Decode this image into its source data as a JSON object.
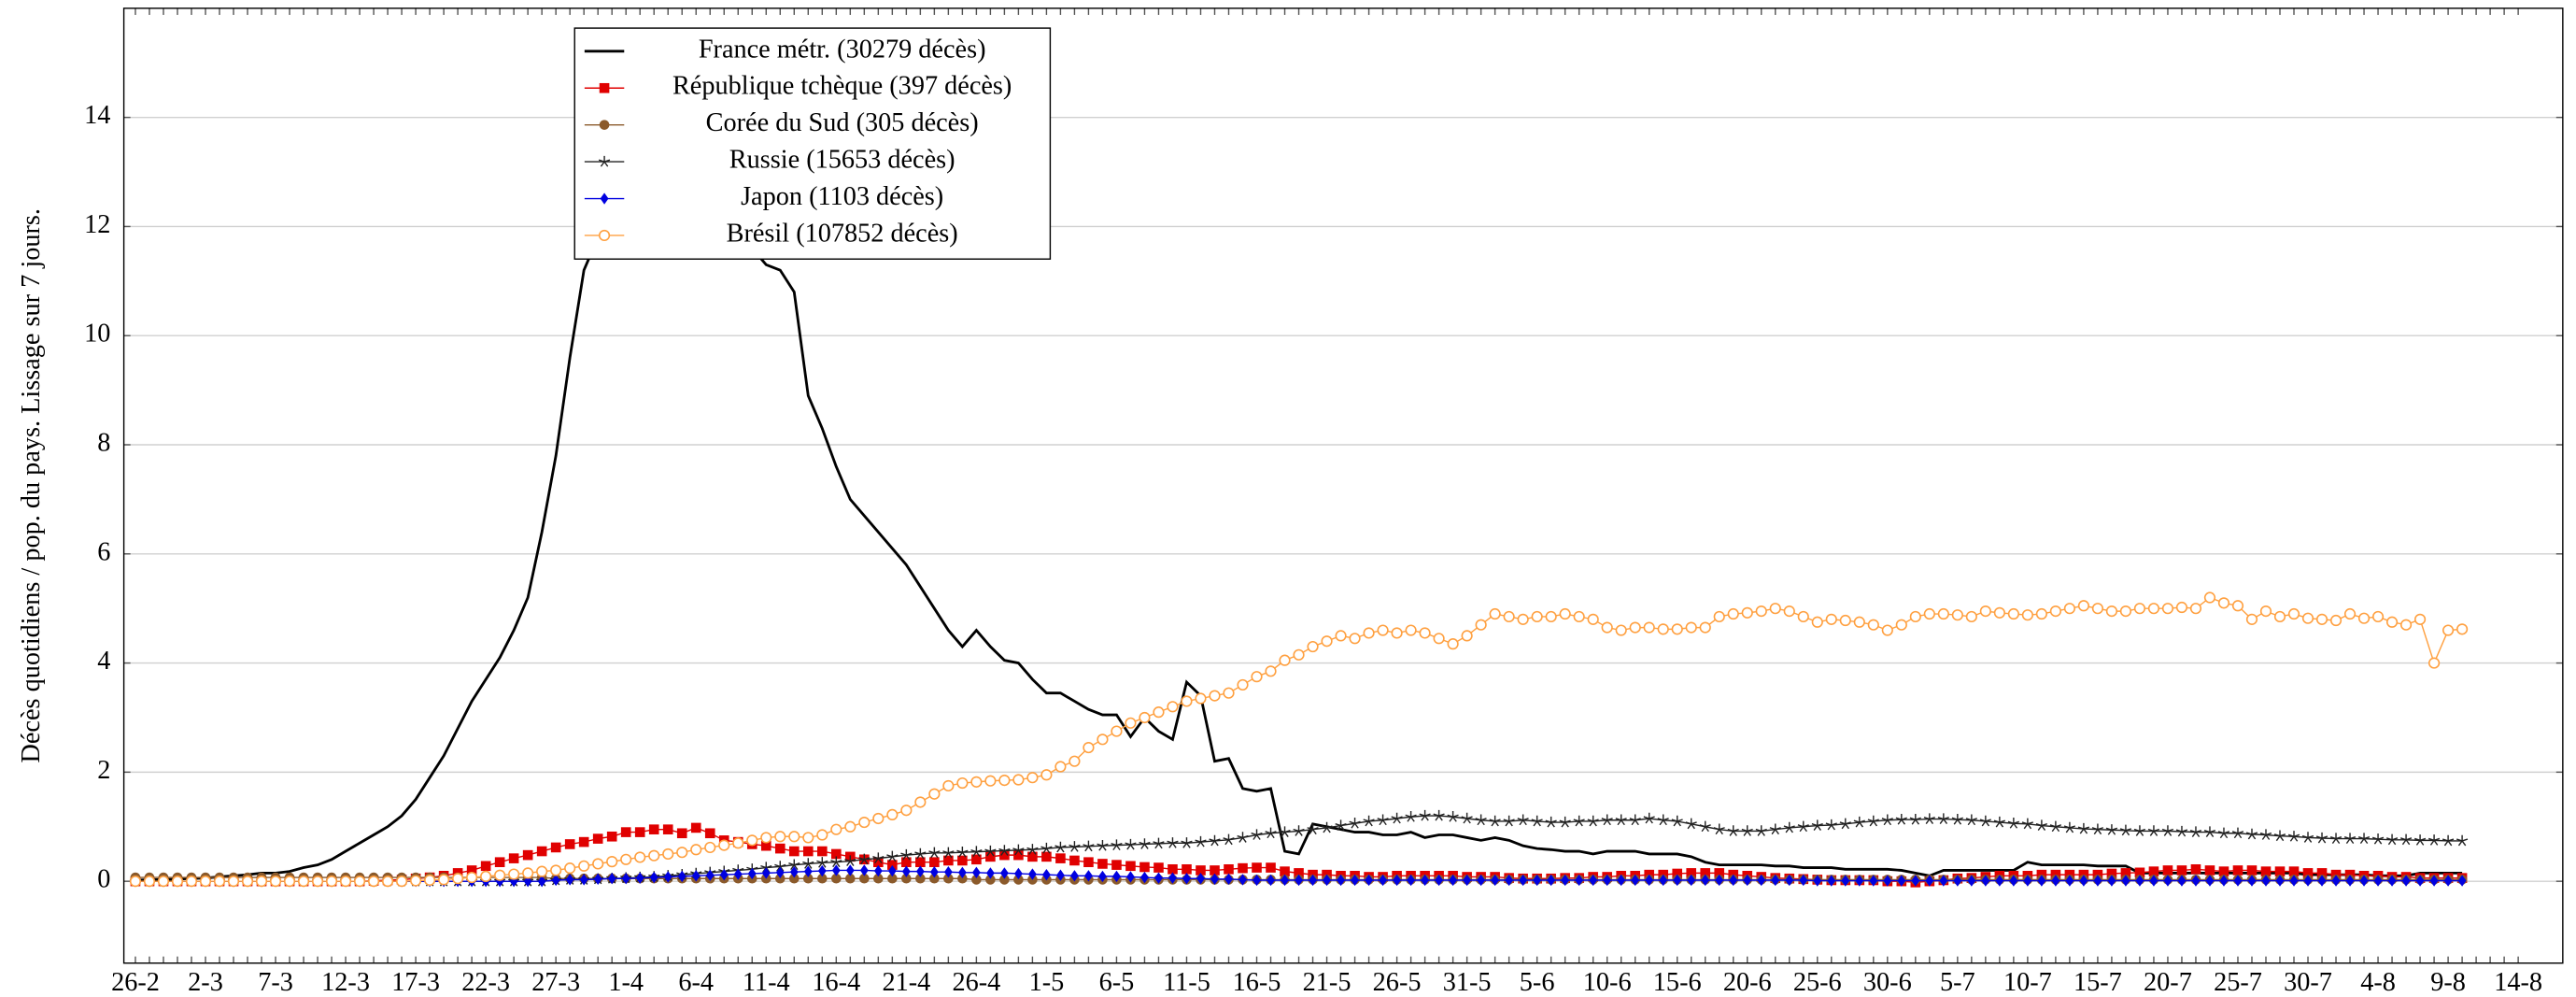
{
  "chart_data": {
    "type": "line",
    "y_label": "Décès quotidiens / pop. du pays. Lissage sur 7 jours.",
    "categories": [
      "26-2",
      null,
      null,
      null,
      null,
      "2-3",
      null,
      null,
      null,
      null,
      "7-3",
      null,
      null,
      null,
      null,
      "12-3",
      null,
      null,
      null,
      null,
      "17-3",
      null,
      null,
      null,
      null,
      "22-3",
      null,
      null,
      null,
      null,
      "27-3",
      null,
      null,
      null,
      null,
      "1-4",
      null,
      null,
      null,
      null,
      "6-4",
      null,
      null,
      null,
      null,
      "11-4",
      null,
      null,
      null,
      null,
      "16-4",
      null,
      null,
      null,
      null,
      "21-4",
      null,
      null,
      null,
      null,
      "26-4",
      null,
      null,
      null,
      null,
      "1-5",
      null,
      null,
      null,
      null,
      "6-5",
      null,
      null,
      null,
      null,
      "11-5",
      null,
      null,
      null,
      null,
      "16-5",
      null,
      null,
      null,
      null,
      "21-5",
      null,
      null,
      null,
      null,
      "26-5",
      null,
      null,
      null,
      null,
      "31-5",
      null,
      null,
      null,
      null,
      "5-6",
      null,
      null,
      null,
      null,
      "10-6",
      null,
      null,
      null,
      null,
      "15-6",
      null,
      null,
      null,
      null,
      "20-6",
      null,
      null,
      null,
      null,
      "25-6",
      null,
      null,
      null,
      null,
      "30-6",
      null,
      null,
      null,
      null,
      "5-7",
      null,
      null,
      null,
      null,
      "10-7",
      null,
      null,
      null,
      null,
      "15-7",
      null,
      null,
      null,
      null,
      "20-7",
      null,
      null,
      null,
      null,
      "25-7",
      null,
      null,
      null,
      null,
      "30-7",
      null,
      null,
      null,
      null,
      "4-8",
      null,
      null,
      null,
      null,
      "9-8",
      null,
      null,
      null,
      null,
      "14-8"
    ],
    "ylim": [
      -1.5,
      16
    ],
    "yticks": [
      0,
      2,
      4,
      6,
      8,
      10,
      12,
      14
    ],
    "grid": true,
    "legend": "upper left",
    "series": [
      {
        "name": "France métr. (30279 décès)",
        "color": "#000000",
        "marker": "none",
        "values": [
          0.02,
          0.03,
          0.03,
          0.04,
          0.05,
          0.06,
          0.08,
          0.1,
          0.12,
          0.15,
          0.15,
          0.18,
          0.25,
          0.3,
          0.4,
          0.55,
          0.7,
          0.85,
          1.0,
          1.2,
          1.5,
          1.9,
          2.3,
          2.8,
          3.3,
          3.7,
          4.1,
          4.6,
          5.2,
          6.4,
          7.8,
          9.6,
          11.2,
          11.8,
          12.2,
          12.4,
          12.5,
          12.6,
          12.6,
          12.5,
          12.4,
          12.3,
          12.1,
          11.9,
          11.6,
          11.3,
          11.2,
          10.8,
          8.9,
          8.3,
          7.6,
          7.0,
          6.7,
          6.4,
          6.1,
          5.8,
          5.4,
          5.0,
          4.6,
          4.3,
          4.6,
          4.3,
          4.05,
          4.0,
          3.7,
          3.45,
          3.45,
          3.3,
          3.15,
          3.05,
          3.05,
          2.65,
          3.0,
          2.75,
          2.6,
          3.65,
          3.4,
          2.2,
          2.25,
          1.7,
          1.65,
          1.7,
          0.55,
          0.5,
          1.05,
          1.0,
          0.95,
          0.9,
          0.9,
          0.85,
          0.85,
          0.9,
          0.8,
          0.85,
          0.85,
          0.8,
          0.75,
          0.8,
          0.75,
          0.65,
          0.6,
          0.58,
          0.55,
          0.55,
          0.5,
          0.55,
          0.55,
          0.55,
          0.5,
          0.5,
          0.5,
          0.45,
          0.35,
          0.3,
          0.3,
          0.3,
          0.3,
          0.28,
          0.28,
          0.25,
          0.25,
          0.25,
          0.22,
          0.22,
          0.22,
          0.22,
          0.2,
          0.15,
          0.1,
          0.2,
          0.2,
          0.2,
          0.2,
          0.2,
          0.2,
          0.35,
          0.3,
          0.3,
          0.3,
          0.3,
          0.28,
          0.28,
          0.28,
          0.15,
          0.15,
          0.15,
          0.15,
          0.15,
          0.15,
          0.15,
          0.15,
          0.15,
          0.15,
          0.15,
          0.15,
          0.12,
          0.12,
          0.12,
          0.12,
          0.12,
          0.1,
          0.1,
          0.1,
          0.15,
          0.15,
          0.15,
          0.15,
          null,
          null,
          null,
          null
        ]
      },
      {
        "name": "République tchèque (397 décès)",
        "color": "#e00000",
        "marker": "square",
        "values": [
          0,
          0,
          0,
          0,
          0,
          0,
          0,
          0,
          0,
          0,
          0,
          0,
          0,
          0,
          0,
          0,
          0,
          0.01,
          0.02,
          0.03,
          0.05,
          0.07,
          0.1,
          0.15,
          0.2,
          0.28,
          0.35,
          0.42,
          0.48,
          0.55,
          0.62,
          0.68,
          0.72,
          0.78,
          0.82,
          0.9,
          0.9,
          0.95,
          0.95,
          0.88,
          0.98,
          0.88,
          0.75,
          0.72,
          0.68,
          0.65,
          0.6,
          0.55,
          0.55,
          0.55,
          0.5,
          0.45,
          0.4,
          0.35,
          0.3,
          0.35,
          0.35,
          0.35,
          0.38,
          0.38,
          0.4,
          0.45,
          0.48,
          0.48,
          0.45,
          0.45,
          0.42,
          0.38,
          0.35,
          0.32,
          0.3,
          0.28,
          0.26,
          0.25,
          0.22,
          0.22,
          0.2,
          0.2,
          0.22,
          0.24,
          0.25,
          0.25,
          0.18,
          0.15,
          0.12,
          0.12,
          0.1,
          0.1,
          0.08,
          0.08,
          0.1,
          0.1,
          0.1,
          0.1,
          0.1,
          0.08,
          0.08,
          0.08,
          0.06,
          0.05,
          0.05,
          0.05,
          0.06,
          0.06,
          0.08,
          0.08,
          0.1,
          0.1,
          0.12,
          0.12,
          0.14,
          0.15,
          0.15,
          0.15,
          0.12,
          0.1,
          0.08,
          0.06,
          0.05,
          0.04,
          0.03,
          0.02,
          0.02,
          0.02,
          0.02,
          0,
          0,
          -0.02,
          0,
          0.02,
          0.05,
          0.06,
          0.08,
          0.1,
          0.1,
          0.1,
          0.12,
          0.12,
          0.12,
          0.12,
          0.12,
          0.14,
          0.15,
          0.16,
          0.18,
          0.2,
          0.2,
          0.22,
          0.2,
          0.18,
          0.2,
          0.2,
          0.18,
          0.18,
          0.18,
          0.15,
          0.15,
          0.12,
          0.12,
          0.1,
          0.1,
          0.08,
          0.08,
          0.06,
          0.06,
          0.06,
          0.06,
          null,
          null,
          null,
          null
        ]
      },
      {
        "name": "Corée du Sud (305 décès)",
        "color": "#8b5a2b",
        "marker": "circle",
        "values": [
          0.07,
          0.07,
          0.07,
          0.07,
          0.07,
          0.07,
          0.07,
          0.07,
          0.07,
          0.07,
          0.07,
          0.07,
          0.07,
          0.07,
          0.07,
          0.07,
          0.07,
          0.07,
          0.07,
          0.07,
          0.07,
          0.07,
          0.07,
          0.07,
          0.07,
          0.07,
          0.07,
          0.07,
          0.07,
          0.07,
          0.05,
          0.05,
          0.05,
          0.05,
          0.05,
          0.05,
          0.05,
          0.05,
          0.05,
          0.05,
          0.05,
          0.05,
          0.05,
          0.05,
          0.05,
          0.05,
          0.05,
          0.05,
          0.05,
          0.05,
          0.05,
          0.05,
          0.05,
          0.05,
          0.05,
          0.05,
          0.05,
          0.05,
          0.05,
          0.05,
          0.03,
          0.03,
          0.03,
          0.03,
          0.03,
          0.03,
          0.03,
          0.03,
          0.03,
          0.03,
          0.03,
          0.03,
          0.03,
          0.03,
          0.03,
          0.03,
          0.03,
          0.03,
          0.03,
          0.03,
          0.03,
          0.03,
          0.03,
          0.03,
          0.03,
          0.03,
          0.03,
          0.03,
          0.03,
          0.03,
          0.03,
          0.03,
          0.03,
          0.03,
          0.03,
          0.03,
          0.03,
          0.03,
          0.03,
          0.03,
          0.03,
          0.03,
          0.03,
          0.03,
          0.03,
          0.03,
          0.03,
          0.03,
          0.03,
          0.03,
          0.03,
          0.03,
          0.03,
          0.03,
          0.03,
          0.03,
          0.03,
          0.03,
          0.03,
          0.03,
          0.03,
          0.03,
          0.03,
          0.03,
          0.03,
          0.03,
          0.03,
          0.03,
          0.03,
          0.03,
          0.03,
          0.03,
          0.03,
          0.03,
          0.03,
          0.03,
          0.03,
          0.03,
          0.03,
          0.03,
          0.03,
          0.03,
          0.03,
          0.03,
          0.03,
          0.03,
          0.03,
          0.03,
          0.03,
          0.03,
          0.03,
          0.03,
          0.03,
          0.03,
          0.03,
          0.03,
          0.03,
          0.03,
          0.03,
          0.03,
          0.03,
          0.03,
          0.03,
          0.03,
          0.03,
          0.03,
          0.03,
          null,
          null,
          null,
          null
        ]
      },
      {
        "name": "Russie (15653 décès)",
        "color": "#222222",
        "marker": "star",
        "values": [
          0,
          0,
          0,
          0,
          0,
          0,
          0,
          0,
          0,
          0,
          0,
          0,
          0,
          0,
          0,
          0,
          0,
          0,
          0,
          0,
          0,
          0,
          0,
          0,
          0,
          0,
          0,
          0,
          0,
          0,
          0.02,
          0.03,
          0.03,
          0.04,
          0.05,
          0.06,
          0.07,
          0.08,
          0.1,
          0.12,
          0.14,
          0.16,
          0.18,
          0.2,
          0.22,
          0.25,
          0.27,
          0.3,
          0.32,
          0.34,
          0.35,
          0.37,
          0.4,
          0.42,
          0.45,
          0.48,
          0.5,
          0.52,
          0.52,
          0.53,
          0.54,
          0.55,
          0.56,
          0.57,
          0.58,
          0.6,
          0.62,
          0.63,
          0.64,
          0.65,
          0.66,
          0.67,
          0.68,
          0.69,
          0.7,
          0.7,
          0.72,
          0.74,
          0.76,
          0.8,
          0.85,
          0.88,
          0.9,
          0.92,
          0.95,
          0.98,
          1.02,
          1.06,
          1.1,
          1.12,
          1.15,
          1.18,
          1.2,
          1.2,
          1.18,
          1.15,
          1.12,
          1.1,
          1.1,
          1.12,
          1.1,
          1.08,
          1.08,
          1.1,
          1.1,
          1.12,
          1.12,
          1.12,
          1.15,
          1.12,
          1.1,
          1.05,
          1.0,
          0.95,
          0.92,
          0.92,
          0.92,
          0.95,
          0.98,
          1.0,
          1.02,
          1.03,
          1.05,
          1.08,
          1.1,
          1.12,
          1.13,
          1.13,
          1.14,
          1.14,
          1.13,
          1.12,
          1.1,
          1.08,
          1.06,
          1.05,
          1.02,
          1.0,
          0.98,
          0.96,
          0.95,
          0.94,
          0.93,
          0.92,
          0.92,
          0.92,
          0.91,
          0.9,
          0.9,
          0.88,
          0.88,
          0.86,
          0.85,
          0.83,
          0.82,
          0.8,
          0.79,
          0.78,
          0.78,
          0.78,
          0.77,
          0.76,
          0.76,
          0.75,
          0.75,
          0.74,
          0.74,
          null,
          null,
          null,
          null
        ]
      },
      {
        "name": "Japon (1103 décès)",
        "color": "#0000e0",
        "marker": "diamond",
        "values": [
          0,
          0,
          0,
          0,
          0,
          0,
          0,
          0,
          0,
          0,
          0,
          0,
          0,
          0,
          0,
          0,
          0,
          0,
          0,
          0,
          0,
          0,
          0,
          0,
          0,
          0,
          0,
          0,
          0,
          0,
          0.02,
          0.03,
          0.03,
          0.04,
          0.05,
          0.05,
          0.06,
          0.07,
          0.08,
          0.09,
          0.1,
          0.11,
          0.12,
          0.13,
          0.14,
          0.15,
          0.16,
          0.17,
          0.18,
          0.19,
          0.2,
          0.2,
          0.2,
          0.19,
          0.19,
          0.18,
          0.18,
          0.17,
          0.17,
          0.16,
          0.16,
          0.15,
          0.15,
          0.14,
          0.13,
          0.12,
          0.11,
          0.1,
          0.1,
          0.09,
          0.09,
          0.08,
          0.07,
          0.06,
          0.06,
          0.05,
          0.05,
          0.04,
          0.04,
          0.03,
          0.02,
          0.02,
          0.02,
          0.02,
          0.02,
          0.02,
          0.02,
          0.02,
          0.02,
          0.02,
          0.02,
          0.02,
          0.02,
          0.02,
          0.02,
          0.02,
          0.02,
          0.02,
          0.02,
          0.02,
          0.02,
          0.02,
          0.02,
          0.02,
          0.02,
          0.02,
          0.02,
          0.02,
          0.02,
          0.02,
          0.02,
          0.02,
          0.02,
          0.02,
          0.02,
          0.02,
          0.02,
          0.02,
          0.02,
          0.02,
          0.01,
          0.01,
          0.01,
          0.01,
          0.01,
          0.01,
          0.01,
          0.01,
          0.01,
          0.01,
          0.01,
          0.01,
          0.01,
          0.01,
          0.01,
          0.01,
          0.01,
          0.01,
          0.01,
          0.01,
          0.01,
          0.01,
          0.01,
          0.01,
          0.01,
          0.01,
          0.01,
          0.01,
          0.01,
          0.01,
          0.01,
          0.01,
          0.01,
          0.01,
          0.01,
          0.01,
          0.01,
          0.01,
          0.01,
          0.01,
          0.01,
          0.01,
          0.01,
          0.01,
          0.01,
          0.01,
          0.01,
          null,
          null,
          null,
          null
        ]
      },
      {
        "name": "Brésil (107852 décès)",
        "color": "#ffa040",
        "marker": "open-circle",
        "values": [
          0,
          0,
          0,
          0,
          0,
          0,
          0,
          0,
          0,
          0,
          0,
          0,
          0,
          0,
          0,
          0,
          0,
          0,
          0,
          0,
          0.01,
          0.02,
          0.03,
          0.05,
          0.07,
          0.09,
          0.11,
          0.13,
          0.15,
          0.18,
          0.2,
          0.24,
          0.28,
          0.32,
          0.36,
          0.4,
          0.44,
          0.47,
          0.5,
          0.53,
          0.58,
          0.62,
          0.66,
          0.7,
          0.75,
          0.8,
          0.82,
          0.82,
          0.8,
          0.85,
          0.95,
          1.0,
          1.08,
          1.15,
          1.22,
          1.3,
          1.45,
          1.6,
          1.75,
          1.8,
          1.82,
          1.84,
          1.85,
          1.86,
          1.9,
          1.95,
          2.1,
          2.2,
          2.45,
          2.6,
          2.75,
          2.9,
          3.0,
          3.1,
          3.2,
          3.3,
          3.35,
          3.4,
          3.45,
          3.6,
          3.75,
          3.85,
          4.05,
          4.15,
          4.3,
          4.4,
          4.5,
          4.45,
          4.55,
          4.6,
          4.55,
          4.6,
          4.55,
          4.45,
          4.35,
          4.5,
          4.7,
          4.9,
          4.85,
          4.8,
          4.85,
          4.85,
          4.9,
          4.85,
          4.8,
          4.65,
          4.6,
          4.65,
          4.65,
          4.62,
          4.62,
          4.65,
          4.65,
          4.85,
          4.9,
          4.92,
          4.95,
          5.0,
          4.95,
          4.85,
          4.75,
          4.8,
          4.78,
          4.75,
          4.7,
          4.6,
          4.7,
          4.85,
          4.9,
          4.9,
          4.88,
          4.85,
          4.95,
          4.92,
          4.9,
          4.88,
          4.9,
          4.95,
          5.0,
          5.05,
          5.0,
          4.95,
          4.95,
          5.0,
          5.0,
          5.0,
          5.02,
          5.0,
          5.2,
          5.1,
          5.05,
          4.8,
          4.95,
          4.85,
          4.9,
          4.82,
          4.8,
          4.78,
          4.9,
          4.82,
          4.85,
          4.75,
          4.7,
          4.8,
          4.0,
          4.6,
          4.62,
          null,
          null,
          null,
          null
        ]
      }
    ]
  }
}
